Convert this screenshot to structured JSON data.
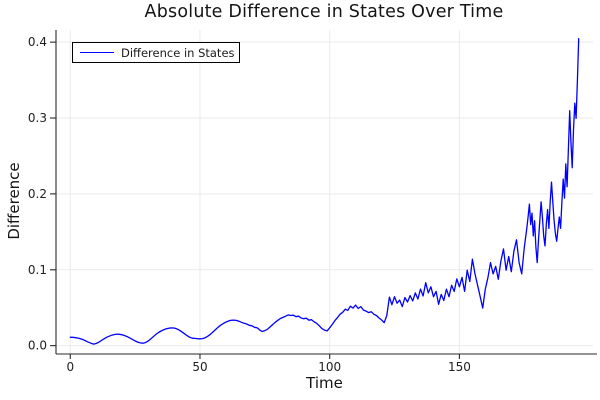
{
  "chart_data": {
    "type": "line",
    "title": "Absolute Difference in States Over Time",
    "xlabel": "Time",
    "ylabel": "Difference",
    "xlim": [
      -5.5,
      201.5
    ],
    "ylim": [
      -0.011,
      0.416
    ],
    "grid": true,
    "legend_position": "top-left",
    "xticks": {
      "values": [
        0,
        50,
        100,
        150
      ],
      "labels": [
        "0",
        "50",
        "100",
        "150"
      ]
    },
    "yticks": {
      "values": [
        0,
        0.1,
        0.2,
        0.3,
        0.4
      ],
      "labels": [
        "0.0",
        "0.1",
        "0.2",
        "0.3",
        "0.4"
      ]
    },
    "colors": {
      "series": "#0000ff",
      "grid": "#eaeaea",
      "axis": "#2a2a2a",
      "tick_text": "#1f1f1f",
      "background": "#ffffff",
      "legend_border": "#000000"
    },
    "series": [
      {
        "name": "Difference in States",
        "color": "#0000ff",
        "x": [
          0,
          1,
          2,
          3,
          4,
          5,
          6,
          7,
          8,
          9,
          10,
          11,
          12,
          13,
          14,
          15,
          16,
          17,
          18,
          19,
          20,
          21,
          22,
          23,
          24,
          25,
          26,
          27,
          28,
          29,
          30,
          31,
          32,
          33,
          34,
          35,
          36,
          37,
          38,
          39,
          40,
          41,
          42,
          43,
          44,
          45,
          46,
          47,
          48,
          49,
          50,
          51,
          52,
          53,
          54,
          55,
          56,
          57,
          58,
          59,
          60,
          61,
          62,
          63,
          64,
          65,
          66,
          67,
          68,
          69,
          70,
          71,
          72,
          73,
          74,
          75,
          76,
          77,
          78,
          79,
          80,
          81,
          82,
          83,
          84,
          85,
          86,
          87,
          88,
          89,
          90,
          91,
          92,
          93,
          94,
          95,
          96,
          97,
          98,
          99,
          100,
          101,
          102,
          103,
          104,
          105,
          106,
          107,
          108,
          109,
          110,
          111,
          112,
          113,
          114,
          115,
          116,
          117,
          118,
          119,
          120,
          121,
          122,
          123,
          124,
          125,
          126,
          127,
          128,
          129,
          130,
          131,
          132,
          133,
          134,
          135,
          136,
          137,
          138,
          139,
          140,
          141,
          142,
          143,
          144,
          145,
          146,
          147,
          148,
          149,
          150,
          151,
          152,
          153,
          154,
          155,
          156,
          157,
          158,
          159,
          160,
          161,
          162,
          163,
          164,
          165,
          166,
          167,
          168,
          169,
          170,
          171,
          172,
          173,
          174,
          175,
          175.5,
          176,
          176.5,
          177,
          177.5,
          178,
          178.5,
          179,
          179.5,
          180,
          180.5,
          181,
          181.5,
          182,
          182.5,
          183,
          183.5,
          184,
          184.5,
          185,
          185.5,
          186,
          186.5,
          187,
          187.5,
          188,
          188.5,
          189,
          189.5,
          190,
          190.5,
          191,
          191.5,
          192,
          192.5,
          193,
          193.5,
          194,
          194.5,
          195,
          195.5,
          196
        ],
        "y": [
          0.011,
          0.011,
          0.0105,
          0.01,
          0.009,
          0.0078,
          0.0062,
          0.0046,
          0.0032,
          0.002,
          0.0028,
          0.0045,
          0.0068,
          0.009,
          0.011,
          0.0125,
          0.0138,
          0.0147,
          0.0152,
          0.015,
          0.0143,
          0.0132,
          0.0118,
          0.01,
          0.0082,
          0.0063,
          0.0047,
          0.0036,
          0.0032,
          0.004,
          0.006,
          0.0088,
          0.0118,
          0.0148,
          0.0173,
          0.0193,
          0.021,
          0.0222,
          0.023,
          0.0234,
          0.0232,
          0.0222,
          0.0205,
          0.0183,
          0.0158,
          0.0133,
          0.0112,
          0.0098,
          0.0095,
          0.0091,
          0.009,
          0.0093,
          0.0105,
          0.0125,
          0.015,
          0.018,
          0.0212,
          0.0243,
          0.027,
          0.0292,
          0.031,
          0.0325,
          0.0334,
          0.0337,
          0.0333,
          0.0322,
          0.0308,
          0.0295,
          0.0285,
          0.0268,
          0.0262,
          0.0242,
          0.0235,
          0.0208,
          0.0186,
          0.0198,
          0.0215,
          0.0246,
          0.0278,
          0.0308,
          0.0334,
          0.0358,
          0.0372,
          0.0388,
          0.0405,
          0.0398,
          0.0402,
          0.0382,
          0.0388,
          0.0365,
          0.0355,
          0.0362,
          0.0335,
          0.0342,
          0.0315,
          0.0295,
          0.0262,
          0.0225,
          0.0205,
          0.0195,
          0.0235,
          0.028,
          0.033,
          0.037,
          0.0415,
          0.044,
          0.048,
          0.0465,
          0.052,
          0.0495,
          0.0535,
          0.049,
          0.0515,
          0.047,
          0.0455,
          0.0435,
          0.0448,
          0.0415,
          0.0398,
          0.0365,
          0.0338,
          0.0302,
          0.0398,
          0.064,
          0.054,
          0.0645,
          0.056,
          0.06,
          0.0515,
          0.0635,
          0.0575,
          0.066,
          0.059,
          0.0695,
          0.0615,
          0.0745,
          0.0655,
          0.083,
          0.0695,
          0.0775,
          0.0645,
          0.0715,
          0.0545,
          0.0675,
          0.0595,
          0.0745,
          0.0645,
          0.0795,
          0.0715,
          0.088,
          0.0775,
          0.09,
          0.0715,
          0.0995,
          0.0845,
          0.114,
          0.0945,
          0.0795,
          0.0645,
          0.0495,
          0.0745,
          0.0895,
          0.1095,
          0.0945,
          0.1045,
          0.0875,
          0.1115,
          0.1275,
          0.0995,
          0.1175,
          0.0975,
          0.1245,
          0.1395,
          0.1095,
          0.0945,
          0.1295,
          0.1425,
          0.1545,
          0.17,
          0.1865,
          0.1595,
          0.1745,
          0.1445,
          0.1645,
          0.1295,
          0.1095,
          0.1395,
          0.1645,
          0.1895,
          0.1695,
          0.1445,
          0.1315,
          0.1595,
          0.1795,
          0.1545,
          0.1895,
          0.2155,
          0.1895,
          0.1645,
          0.1475,
          0.1375,
          0.1545,
          0.1695,
          0.1545,
          0.1895,
          0.2195,
          0.1945,
          0.2395,
          0.2095,
          0.2595,
          0.3095,
          0.2695,
          0.2345,
          0.2845,
          0.3195,
          0.2995,
          0.3495,
          0.4045
        ]
      }
    ]
  }
}
